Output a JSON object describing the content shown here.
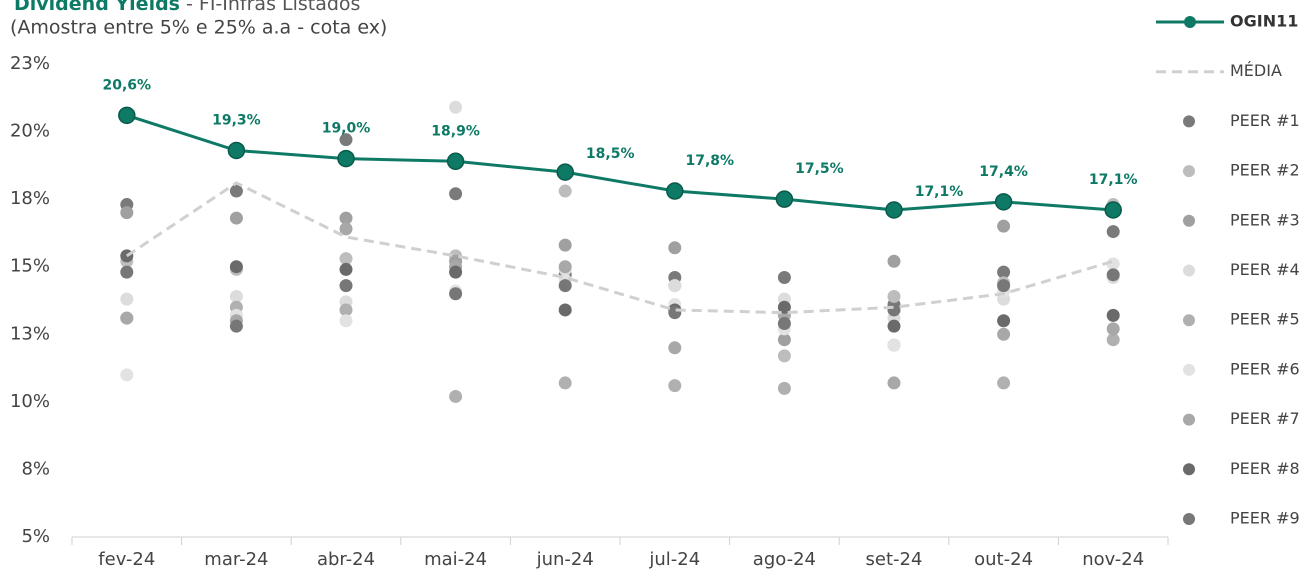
{
  "chart_data": {
    "type": "line",
    "title": "Dividend Yields",
    "title_suffix": "- FI-Infras Listados",
    "subtitle": "(Amostra entre 5% e 25% a.a - cota ex)",
    "categories": [
      "fev-24",
      "mar-24",
      "abr-24",
      "mai-24",
      "jun-24",
      "jul-24",
      "ago-24",
      "set-24",
      "out-24",
      "nov-24"
    ],
    "ylim": [
      5,
      22.5
    ],
    "yticks": [
      {
        "value": 5,
        "label": "5%"
      },
      {
        "value": 7.5,
        "label": "8%"
      },
      {
        "value": 10,
        "label": "10%"
      },
      {
        "value": 12.5,
        "label": "13%"
      },
      {
        "value": 15,
        "label": "15%"
      },
      {
        "value": 17.5,
        "label": "18%"
      },
      {
        "value": 20,
        "label": "20%"
      },
      {
        "value": 22.5,
        "label": "23%"
      }
    ],
    "series": [
      {
        "name": "OGIN11",
        "color": "#0e7a66",
        "style": "line-marker",
        "values": [
          20.6,
          19.3,
          19.0,
          18.9,
          18.5,
          17.8,
          17.5,
          17.1,
          17.4,
          17.1
        ],
        "value_labels": [
          "20,6%",
          "19,3%",
          "19,0%",
          "18,9%",
          "18,5%",
          "17,8%",
          "17,5%",
          "17,1%",
          "17,4%",
          "17,1%"
        ]
      },
      {
        "name": "MÉDIA",
        "color": "#d0d0d0",
        "style": "dashed",
        "values": [
          15.4,
          18.1,
          16.1,
          15.4,
          14.6,
          13.4,
          13.3,
          13.5,
          14.0,
          15.2
        ]
      },
      {
        "name": "PEER #1",
        "color": "#7a7a7a",
        "style": "marker",
        "values": [
          17.3,
          17.8,
          19.7,
          17.7,
          14.7,
          14.6,
          14.6,
          13.6,
          14.8,
          16.3
        ]
      },
      {
        "name": "PEER #2",
        "color": "#bdbdbd",
        "style": "marker",
        "values": [
          15.2,
          14.9,
          15.3,
          15.4,
          17.8,
          14.3,
          11.7,
          13.9,
          14.4,
          17.3
        ]
      },
      {
        "name": "PEER #3",
        "color": "#a0a0a0",
        "style": "marker",
        "values": [
          17.0,
          16.8,
          16.8,
          15.2,
          15.8,
          15.7,
          12.3,
          15.2,
          16.5,
          17.1
        ]
      },
      {
        "name": "PEER #4",
        "color": "#dcdcdc",
        "style": "marker",
        "values": [
          13.8,
          13.9,
          13.7,
          20.9,
          14.9,
          14.3,
          13.8,
          13.1,
          13.8,
          14.6
        ]
      },
      {
        "name": "PEER #5",
        "color": "#b0b0b0",
        "style": "marker",
        "values": [
          13.1,
          13.5,
          13.4,
          10.2,
          10.7,
          10.6,
          10.5,
          12.1,
          10.7,
          12.3
        ]
      },
      {
        "name": "PEER #6",
        "color": "#e2e2e2",
        "style": "marker",
        "values": [
          11.0,
          13.2,
          13.0,
          14.1,
          14.5,
          13.6,
          12.7,
          12.1,
          14.1,
          15.1
        ]
      },
      {
        "name": "PEER #7",
        "color": "#a8a8a8",
        "style": "marker",
        "values": [
          13.1,
          13.0,
          16.4,
          15.0,
          15.0,
          12.0,
          13.2,
          10.7,
          12.5,
          12.7
        ]
      },
      {
        "name": "PEER #8",
        "color": "#6a6a6a",
        "style": "marker",
        "values": [
          15.4,
          15.0,
          14.9,
          14.8,
          13.4,
          13.4,
          13.5,
          12.8,
          13.0,
          13.2
        ]
      },
      {
        "name": "PEER #9",
        "color": "#777777",
        "style": "marker",
        "values": [
          14.8,
          12.8,
          14.3,
          14.0,
          14.3,
          13.3,
          12.9,
          13.4,
          14.3,
          14.7
        ]
      }
    ]
  }
}
